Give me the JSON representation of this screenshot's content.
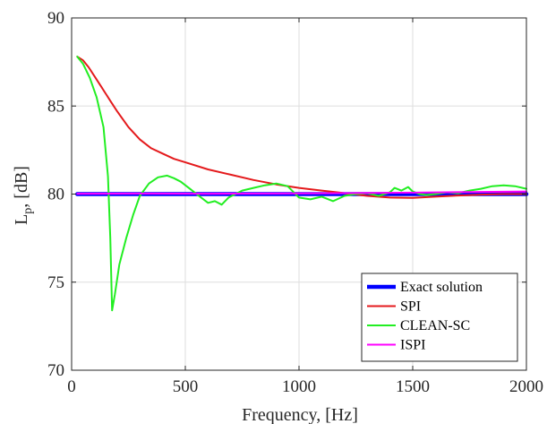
{
  "chart_data": {
    "type": "line",
    "xlabel": "Frequency, [Hz]",
    "ylabel_main": "L",
    "ylabel_sub": "p",
    "ylabel_rest": ", [dB]",
    "xlim": [
      0,
      2000
    ],
    "ylim": [
      70,
      90
    ],
    "xticks": [
      0,
      500,
      1000,
      1500,
      2000
    ],
    "yticks": [
      70,
      75,
      80,
      85,
      90
    ],
    "grid": true,
    "legend_position": "bottom-right",
    "series": [
      {
        "name": "Exact solution",
        "color": "#0000ff",
        "width": 4.5,
        "x": [
          25,
          2000
        ],
        "y": [
          80.0,
          80.0
        ]
      },
      {
        "name": "SPI",
        "color": "#e41a1c",
        "width": 2,
        "x": [
          25,
          50,
          75,
          100,
          125,
          150,
          175,
          200,
          250,
          300,
          350,
          400,
          450,
          500,
          600,
          700,
          800,
          900,
          1000,
          1100,
          1200,
          1300,
          1400,
          1500,
          1600,
          1700,
          1800,
          1900,
          2000
        ],
        "y": [
          87.8,
          87.6,
          87.2,
          86.7,
          86.2,
          85.7,
          85.2,
          84.7,
          83.8,
          83.1,
          82.6,
          82.3,
          82.0,
          81.8,
          81.4,
          81.1,
          80.8,
          80.55,
          80.35,
          80.2,
          80.05,
          79.9,
          79.8,
          79.78,
          79.85,
          79.92,
          79.97,
          80.0,
          80.0
        ]
      },
      {
        "name": "CLEAN-SC",
        "color": "#22ee22",
        "width": 2,
        "x": [
          25,
          50,
          80,
          110,
          140,
          160,
          170,
          178,
          190,
          210,
          240,
          270,
          300,
          340,
          380,
          420,
          450,
          480,
          520,
          560,
          600,
          630,
          660,
          690,
          720,
          750,
          800,
          850,
          900,
          950,
          1000,
          1050,
          1100,
          1150,
          1200,
          1250,
          1300,
          1350,
          1400,
          1420,
          1450,
          1480,
          1500,
          1530,
          1560,
          1600,
          1650,
          1700,
          1750,
          1800,
          1850,
          1900,
          1950,
          2000
        ],
        "y": [
          87.8,
          87.4,
          86.6,
          85.5,
          83.8,
          81.0,
          77.5,
          73.4,
          74.3,
          76.0,
          77.5,
          78.8,
          79.9,
          80.6,
          80.95,
          81.05,
          80.9,
          80.7,
          80.3,
          79.9,
          79.5,
          79.6,
          79.4,
          79.8,
          80.0,
          80.2,
          80.35,
          80.5,
          80.6,
          80.45,
          79.8,
          79.7,
          79.85,
          79.6,
          79.9,
          80.0,
          80.05,
          79.9,
          80.1,
          80.35,
          80.2,
          80.4,
          80.15,
          80.0,
          79.95,
          80.0,
          80.1,
          80.05,
          80.2,
          80.3,
          80.45,
          80.5,
          80.45,
          80.3
        ]
      },
      {
        "name": "ISPI",
        "color": "#ff00ff",
        "width": 2,
        "x": [
          25,
          300,
          600,
          900,
          1200,
          1500,
          1800,
          2000
        ],
        "y": [
          80.02,
          80.03,
          80.02,
          80.03,
          80.05,
          80.08,
          80.12,
          80.15
        ]
      }
    ]
  }
}
